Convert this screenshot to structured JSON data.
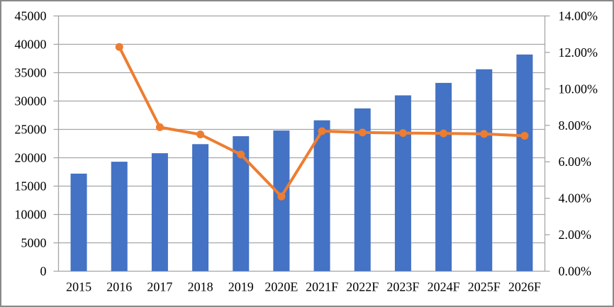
{
  "chart_data": {
    "type": "combo",
    "title": "",
    "categories": [
      "2015",
      "2016",
      "2017",
      "2018",
      "2019",
      "2020E",
      "2021F",
      "2022F",
      "2023F",
      "2024F",
      "2025F",
      "2026F"
    ],
    "series": [
      {
        "name": "market-size-bars",
        "type": "bar",
        "axis": "left",
        "color": "#4472C4",
        "values": [
          17200,
          19300,
          20800,
          22400,
          23800,
          24800,
          26600,
          28700,
          31000,
          33200,
          35600,
          38200
        ]
      },
      {
        "name": "growth-rate-line",
        "type": "line",
        "axis": "right",
        "color": "#ED7D31",
        "values": [
          null,
          12.3,
          7.9,
          7.5,
          6.4,
          4.1,
          7.68,
          7.61,
          7.58,
          7.56,
          7.53,
          7.43
        ]
      }
    ],
    "left_axis": {
      "min": 0,
      "max": 45000,
      "step": 5000,
      "tick_labels": [
        "0",
        "5000",
        "10000",
        "15000",
        "20000",
        "25000",
        "30000",
        "35000",
        "40000",
        "45000"
      ]
    },
    "right_axis": {
      "min": 0,
      "max": 14,
      "step": 2,
      "tick_labels": [
        "0.00%",
        "2.00%",
        "4.00%",
        "6.00%",
        "8.00%",
        "10.00%",
        "12.00%",
        "14.00%"
      ]
    },
    "grid": true,
    "legend": null,
    "colors": {
      "bar": "#4472C4",
      "line": "#ED7D31",
      "gridline": "#A6A6A6",
      "plot_border": "#A6A6A6",
      "frame_border": "#898989",
      "text": "#000000",
      "background": "#FFFFFF"
    }
  }
}
